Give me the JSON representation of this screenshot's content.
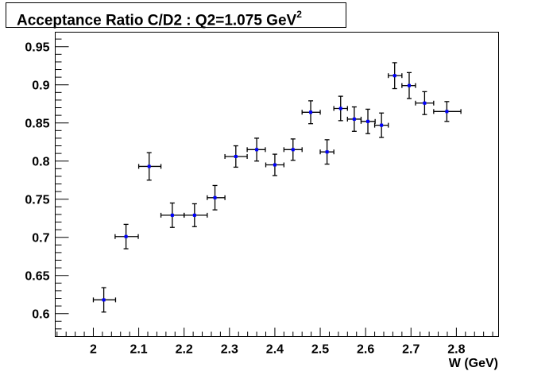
{
  "chart_data": {
    "type": "scatter",
    "title": "Acceptance Ratio C/D2 : Q2=1.075 GeV",
    "title_superscript": "2",
    "xlabel": "W (GeV)",
    "ylabel": "",
    "xlim": [
      1.916,
      2.893
    ],
    "ylim": [
      0.57,
      0.969
    ],
    "grid": false,
    "x_ticks": [
      "2",
      "2.1",
      "2.2",
      "2.3",
      "2.4",
      "2.5",
      "2.6",
      "2.7",
      "2.8"
    ],
    "x_tick_values": [
      2,
      2.1,
      2.2,
      2.3,
      2.4,
      2.5,
      2.6,
      2.7,
      2.8
    ],
    "y_ticks": [
      "0.6",
      "0.65",
      "0.7",
      "0.75",
      "0.8",
      "0.85",
      "0.9",
      "0.95"
    ],
    "y_tick_values": [
      0.6,
      0.65,
      0.7,
      0.75,
      0.8,
      0.85,
      0.9,
      0.95
    ],
    "marker_color": "#0000ff",
    "points": [
      {
        "x": 2.023,
        "y": 0.618,
        "xlo": 2.0,
        "xhi": 2.049,
        "yerr": 0.016
      },
      {
        "x": 2.072,
        "y": 0.701,
        "xlo": 2.048,
        "xhi": 2.099,
        "yerr": 0.016
      },
      {
        "x": 2.123,
        "y": 0.793,
        "xlo": 2.1,
        "xhi": 2.149,
        "yerr": 0.018
      },
      {
        "x": 2.174,
        "y": 0.729,
        "xlo": 2.149,
        "xhi": 2.2,
        "yerr": 0.016
      },
      {
        "x": 2.223,
        "y": 0.729,
        "xlo": 2.2,
        "xhi": 2.251,
        "yerr": 0.015
      },
      {
        "x": 2.268,
        "y": 0.752,
        "xlo": 2.251,
        "xhi": 2.29,
        "yerr": 0.016
      },
      {
        "x": 2.314,
        "y": 0.806,
        "xlo": 2.29,
        "xhi": 2.339,
        "yerr": 0.014
      },
      {
        "x": 2.36,
        "y": 0.815,
        "xlo": 2.339,
        "xhi": 2.379,
        "yerr": 0.015
      },
      {
        "x": 2.4,
        "y": 0.795,
        "xlo": 2.38,
        "xhi": 2.42,
        "yerr": 0.014
      },
      {
        "x": 2.44,
        "y": 0.815,
        "xlo": 2.42,
        "xhi": 2.46,
        "yerr": 0.014
      },
      {
        "x": 2.479,
        "y": 0.864,
        "xlo": 2.46,
        "xhi": 2.5,
        "yerr": 0.015
      },
      {
        "x": 2.515,
        "y": 0.812,
        "xlo": 2.5,
        "xhi": 2.53,
        "yerr": 0.016
      },
      {
        "x": 2.545,
        "y": 0.869,
        "xlo": 2.53,
        "xhi": 2.56,
        "yerr": 0.016
      },
      {
        "x": 2.575,
        "y": 0.855,
        "xlo": 2.56,
        "xhi": 2.59,
        "yerr": 0.016
      },
      {
        "x": 2.605,
        "y": 0.852,
        "xlo": 2.59,
        "xhi": 2.621,
        "yerr": 0.016
      },
      {
        "x": 2.635,
        "y": 0.847,
        "xlo": 2.62,
        "xhi": 2.65,
        "yerr": 0.016
      },
      {
        "x": 2.664,
        "y": 0.912,
        "xlo": 2.65,
        "xhi": 2.68,
        "yerr": 0.017
      },
      {
        "x": 2.696,
        "y": 0.899,
        "xlo": 2.68,
        "xhi": 2.71,
        "yerr": 0.017
      },
      {
        "x": 2.73,
        "y": 0.876,
        "xlo": 2.71,
        "xhi": 2.75,
        "yerr": 0.015
      },
      {
        "x": 2.779,
        "y": 0.865,
        "xlo": 2.75,
        "xhi": 2.81,
        "yerr": 0.013
      }
    ]
  }
}
